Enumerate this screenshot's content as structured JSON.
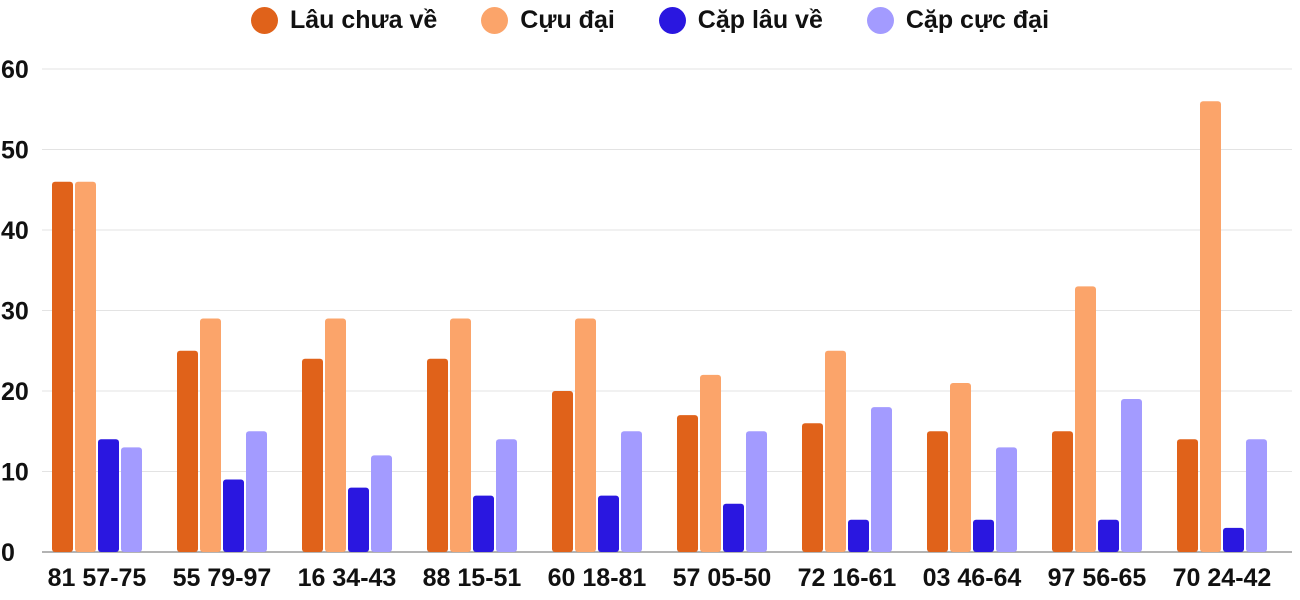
{
  "chart_data": {
    "type": "bar",
    "categories": [
      "81 57-75",
      "55 79-97",
      "16 34-43",
      "88 15-51",
      "60 18-81",
      "57 05-50",
      "72 16-61",
      "03 46-64",
      "97 56-65",
      "70 24-42"
    ],
    "series": [
      {
        "name": "Lâu chưa về",
        "color": "#e0621a",
        "values": [
          46,
          25,
          24,
          24,
          20,
          17,
          16,
          15,
          15,
          14
        ]
      },
      {
        "name": "Cựu đại",
        "color": "#fba46a",
        "values": [
          46,
          29,
          29,
          29,
          29,
          22,
          25,
          21,
          33,
          56
        ]
      },
      {
        "name": "Cặp lâu về",
        "color": "#2a17e0",
        "values": [
          14,
          9,
          8,
          7,
          7,
          6,
          4,
          4,
          4,
          3
        ]
      },
      {
        "name": "Cặp cực đại",
        "color": "#a39bff",
        "values": [
          13,
          15,
          12,
          14,
          15,
          15,
          18,
          13,
          19,
          14
        ]
      }
    ],
    "ylim": [
      0,
      60
    ],
    "yticks": [
      "0",
      "10",
      "20",
      "30",
      "40",
      "50",
      "60"
    ],
    "grid": true,
    "legend_position": "top-center",
    "title": "",
    "xlabel": "",
    "ylabel": ""
  }
}
